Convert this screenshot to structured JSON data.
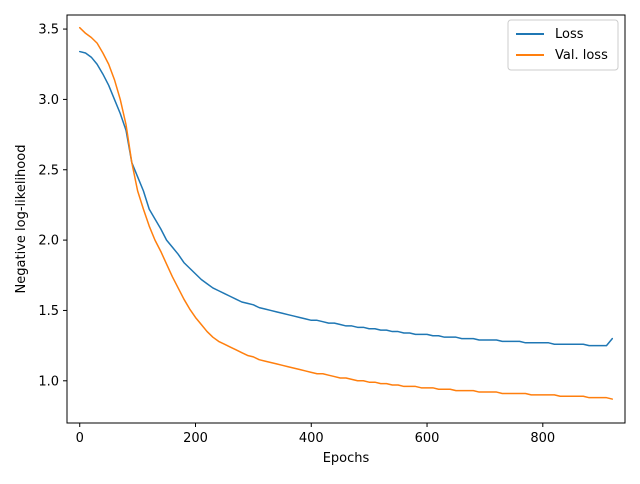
{
  "chart_data": {
    "type": "line",
    "xlabel": "Epochs",
    "ylabel": "Negative log-likelihood",
    "xlim": [
      -22,
      942
    ],
    "ylim": [
      0.7,
      3.6
    ],
    "x_ticks": [
      0,
      200,
      400,
      600,
      800
    ],
    "y_ticks": [
      1.0,
      1.5,
      2.0,
      2.5,
      3.0,
      3.5
    ],
    "x_tick_labels": [
      "0",
      "200",
      "400",
      "600",
      "800"
    ],
    "y_tick_labels": [
      "1.0",
      "1.5",
      "2.0",
      "2.5",
      "3.0",
      "3.5"
    ],
    "grid": false,
    "legend_position": "top-right",
    "series": [
      {
        "name": "Loss",
        "color": "#1f77b4",
        "x": [
          0,
          10,
          20,
          30,
          40,
          50,
          60,
          70,
          80,
          90,
          100,
          110,
          120,
          130,
          140,
          150,
          160,
          170,
          180,
          190,
          200,
          210,
          220,
          230,
          240,
          250,
          260,
          270,
          280,
          290,
          300,
          310,
          320,
          330,
          340,
          350,
          360,
          370,
          380,
          390,
          400,
          410,
          420,
          430,
          440,
          450,
          460,
          470,
          480,
          490,
          500,
          510,
          520,
          530,
          540,
          550,
          560,
          570,
          580,
          590,
          600,
          610,
          620,
          630,
          640,
          650,
          660,
          670,
          680,
          690,
          700,
          710,
          720,
          730,
          740,
          750,
          760,
          770,
          780,
          790,
          800,
          810,
          820,
          830,
          840,
          850,
          860,
          870,
          880,
          890,
          900,
          910,
          920
        ],
        "y": [
          3.34,
          3.33,
          3.3,
          3.25,
          3.18,
          3.1,
          3.0,
          2.9,
          2.78,
          2.55,
          2.45,
          2.35,
          2.22,
          2.15,
          2.08,
          2.0,
          1.95,
          1.9,
          1.84,
          1.8,
          1.76,
          1.72,
          1.69,
          1.66,
          1.64,
          1.62,
          1.6,
          1.58,
          1.56,
          1.55,
          1.54,
          1.52,
          1.51,
          1.5,
          1.49,
          1.48,
          1.47,
          1.46,
          1.45,
          1.44,
          1.43,
          1.43,
          1.42,
          1.41,
          1.41,
          1.4,
          1.39,
          1.39,
          1.38,
          1.38,
          1.37,
          1.37,
          1.36,
          1.36,
          1.35,
          1.35,
          1.34,
          1.34,
          1.33,
          1.33,
          1.33,
          1.32,
          1.32,
          1.31,
          1.31,
          1.31,
          1.3,
          1.3,
          1.3,
          1.29,
          1.29,
          1.29,
          1.29,
          1.28,
          1.28,
          1.28,
          1.28,
          1.27,
          1.27,
          1.27,
          1.27,
          1.27,
          1.26,
          1.26,
          1.26,
          1.26,
          1.26,
          1.26,
          1.25,
          1.25,
          1.25,
          1.25,
          1.3
        ]
      },
      {
        "name": "Val. loss",
        "color": "#ff7f0e",
        "x": [
          0,
          10,
          20,
          30,
          40,
          50,
          60,
          70,
          80,
          90,
          100,
          110,
          120,
          130,
          140,
          150,
          160,
          170,
          180,
          190,
          200,
          210,
          220,
          230,
          240,
          250,
          260,
          270,
          280,
          290,
          300,
          310,
          320,
          330,
          340,
          350,
          360,
          370,
          380,
          390,
          400,
          410,
          420,
          430,
          440,
          450,
          460,
          470,
          480,
          490,
          500,
          510,
          520,
          530,
          540,
          550,
          560,
          570,
          580,
          590,
          600,
          610,
          620,
          630,
          640,
          650,
          660,
          670,
          680,
          690,
          700,
          710,
          720,
          730,
          740,
          750,
          760,
          770,
          780,
          790,
          800,
          810,
          820,
          830,
          840,
          850,
          860,
          870,
          880,
          890,
          900,
          910,
          920
        ],
        "y": [
          3.51,
          3.47,
          3.44,
          3.4,
          3.33,
          3.25,
          3.14,
          3.0,
          2.82,
          2.55,
          2.35,
          2.22,
          2.1,
          2.0,
          1.92,
          1.83,
          1.74,
          1.66,
          1.58,
          1.51,
          1.45,
          1.4,
          1.35,
          1.31,
          1.28,
          1.26,
          1.24,
          1.22,
          1.2,
          1.18,
          1.17,
          1.15,
          1.14,
          1.13,
          1.12,
          1.11,
          1.1,
          1.09,
          1.08,
          1.07,
          1.06,
          1.05,
          1.05,
          1.04,
          1.03,
          1.02,
          1.02,
          1.01,
          1.0,
          1.0,
          0.99,
          0.99,
          0.98,
          0.98,
          0.97,
          0.97,
          0.96,
          0.96,
          0.96,
          0.95,
          0.95,
          0.95,
          0.94,
          0.94,
          0.94,
          0.93,
          0.93,
          0.93,
          0.93,
          0.92,
          0.92,
          0.92,
          0.92,
          0.91,
          0.91,
          0.91,
          0.91,
          0.91,
          0.9,
          0.9,
          0.9,
          0.9,
          0.9,
          0.89,
          0.89,
          0.89,
          0.89,
          0.89,
          0.88,
          0.88,
          0.88,
          0.88,
          0.87
        ]
      }
    ]
  }
}
